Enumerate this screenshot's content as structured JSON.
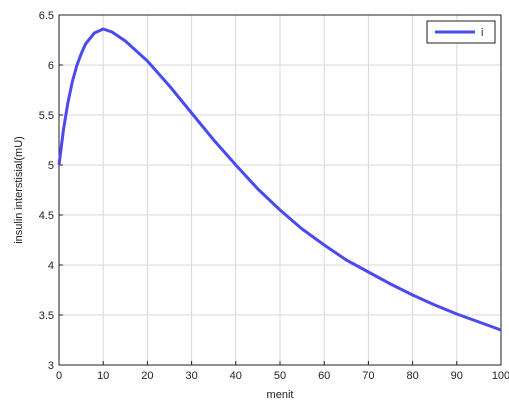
{
  "chart_data": {
    "type": "line",
    "x": [
      0,
      1,
      2,
      3,
      4,
      5,
      6,
      8,
      10,
      12,
      15,
      20,
      25,
      30,
      35,
      40,
      45,
      50,
      55,
      60,
      65,
      70,
      75,
      80,
      85,
      90,
      95,
      100
    ],
    "series": [
      {
        "name": "i",
        "color": "#4a4af0",
        "values": [
          5.0,
          5.35,
          5.62,
          5.83,
          5.99,
          6.11,
          6.21,
          6.32,
          6.36,
          6.33,
          6.24,
          6.04,
          5.79,
          5.52,
          5.25,
          5.0,
          4.76,
          4.55,
          4.36,
          4.2,
          4.05,
          3.93,
          3.81,
          3.7,
          3.6,
          3.51,
          3.43,
          3.35
        ]
      }
    ],
    "xlabel": "menit",
    "ylabel": "insulin interstisial(mU)",
    "xlim": [
      0,
      100
    ],
    "xticks": [
      0,
      10,
      20,
      30,
      40,
      50,
      60,
      70,
      80,
      90,
      100
    ],
    "ylim": [
      3,
      6.5
    ],
    "yticks": [
      3,
      3.5,
      4,
      4.5,
      5,
      5.5,
      6,
      6.5
    ],
    "grid": true,
    "legend": "top-right"
  }
}
